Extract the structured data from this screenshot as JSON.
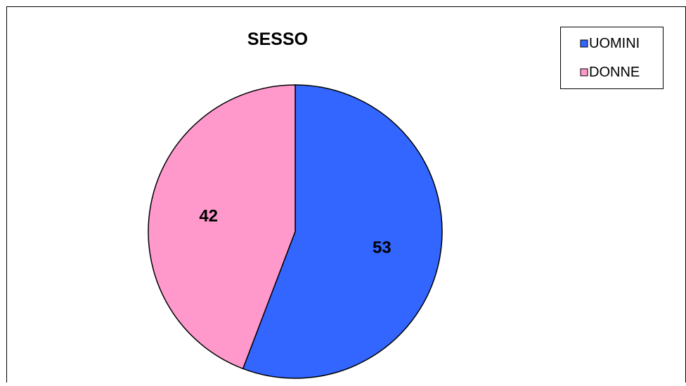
{
  "chart_data": {
    "type": "pie",
    "title": "SESSO",
    "categories": [
      "UOMINI",
      "DONNE"
    ],
    "values": [
      53,
      42
    ],
    "colors": [
      "#3366FF",
      "#FF99CC"
    ],
    "data_labels": [
      "53",
      "42"
    ],
    "legend": {
      "placement": "top-right",
      "entries": [
        "UOMINI",
        "DONNE"
      ]
    }
  }
}
